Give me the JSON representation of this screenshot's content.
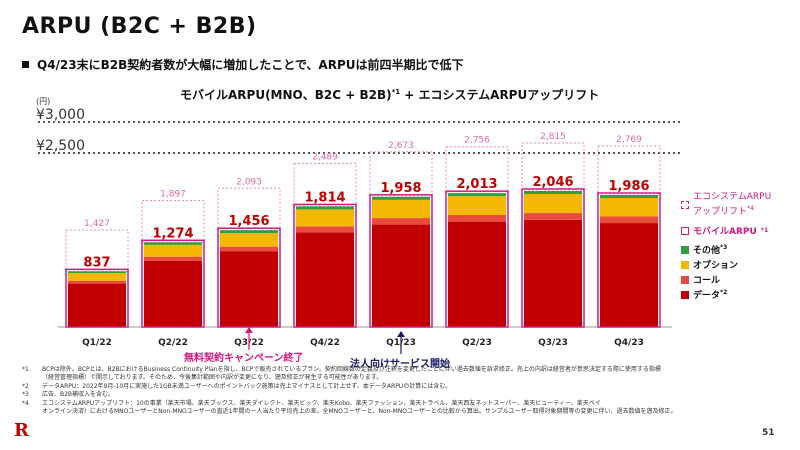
{
  "title": "ARPU (B2C + B2B)",
  "subtitle": "Q4/23末にB2B契約者数が大幅に増加したことで、ARPUは前四半期比で低下",
  "chart_title": "モバイルARPU(MNO、B2C + B2B)",
  "chart_title_note": "*1",
  "chart_title_tail": " + エコシステムARPUアップリフト",
  "colors": {
    "data": "#c00000",
    "call": "#e84c3d",
    "option": "#f5b800",
    "other": "#2e9e3f",
    "accent": "#d6177f"
  },
  "chart_data": {
    "type": "bar",
    "unit_label": "(円)",
    "categories": [
      "Q1/22",
      "Q2/22",
      "Q3/22",
      "Q4/22",
      "Q1/23",
      "Q2/23",
      "Q3/23",
      "Q4/23"
    ],
    "mobile_arpu": [
      837,
      1274,
      1456,
      1814,
      1958,
      2013,
      2046,
      1986
    ],
    "total_with_ecosystem": [
      1427,
      1897,
      2093,
      2489,
      2673,
      2756,
      2815,
      2769
    ],
    "reference_lines": [
      {
        "value": 3000,
        "label": "¥3,000"
      },
      {
        "value": 2500,
        "label": "¥2,500"
      }
    ]
  },
  "legend": {
    "ecosystem_line1": "エコシステムARPU",
    "ecosystem_line2": "アップリフト",
    "ecosystem_note": "*4",
    "mobile": "モバイルARPU",
    "mobile_note": "*1",
    "other": "その他",
    "other_note": "*3",
    "option": "オプション",
    "call": "コール",
    "data": "データ",
    "data_note": "*2"
  },
  "annotations": {
    "campaign_end": "無料契約キャンペーン終了",
    "corporate_start": "法人向けサービス開始"
  },
  "footnotes": [
    {
      "mark": "*1",
      "text": "BCPは除外。BCPとは、B2BにおけるBusiness Continuity Planを指し、BCPで販売されているプラン。契約回線数の定義及び注釈を変更したことに伴い過去数値を訴求修正。売上の内訳は経営者が意思決定する際に使用する指標"
    },
    {
      "mark": "",
      "text": "（経営管理指標）で開示しております。そのため、今後集計範囲や内訳が変更になり、遡及修正が発生する可能性があります。"
    },
    {
      "mark": "*2",
      "text": "データARPU：2022年9月-10月に実施した1GB未満ユーザーへのポイントバック施策は売上マイナスとして計上せず、本データARPUの計算には含む。"
    },
    {
      "mark": "*3",
      "text": "広告、B2B補収入を含む。"
    },
    {
      "mark": "*4",
      "text": "エコシステムARPUアップリフト：10の事業（楽天市場、楽天ブックス、楽天ダイレクト、楽天ビック、楽天Kobo、楽天ファッション、楽天トラベル、楽天西友ネットスーパー、楽天ビューティー、楽天ペイ"
    },
    {
      "mark": "",
      "text": "オンライン決済）におけるMNOユーザーとNon-MNOユーザーの直近1年間の一人当たり平均売上の差。全MNOユーザーと、Non-MNOユーザーとの比較から算出。サンプルユーザー取得対象期間等の変更に伴い、過去数値を遡及修正。"
    }
  ],
  "logo": "R",
  "page_number": "51"
}
